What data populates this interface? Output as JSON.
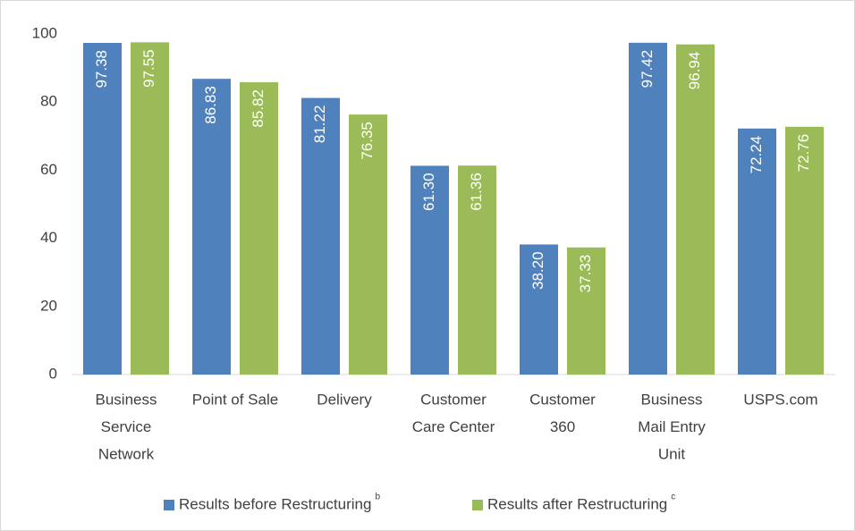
{
  "chart_data": {
    "type": "bar",
    "categories": [
      [
        "Business",
        "Service",
        "Network"
      ],
      [
        "Point of Sale"
      ],
      [
        "Delivery"
      ],
      [
        "Customer",
        "Care Center"
      ],
      [
        "Customer",
        "360"
      ],
      [
        "Business",
        "Mail Entry",
        "Unit"
      ],
      [
        "USPS.com"
      ]
    ],
    "series": [
      {
        "name": "Results before Restructuring",
        "note": "b",
        "color": "#4f81bd",
        "values": [
          97.38,
          86.83,
          81.22,
          61.3,
          38.2,
          97.42,
          72.24
        ],
        "value_labels": [
          "97.38",
          "86.83",
          "81.22",
          "61.30",
          "38.20",
          "97.42",
          "72.24"
        ]
      },
      {
        "name": "Results after Restructuring",
        "note": "c",
        "color": "#9bbb59",
        "values": [
          97.55,
          85.82,
          76.35,
          61.36,
          37.33,
          96.94,
          72.76
        ],
        "value_labels": [
          "97.55",
          "85.82",
          "76.35",
          "61.36",
          "37.33",
          "96.94",
          "72.76"
        ]
      }
    ],
    "ylim": [
      0,
      100
    ],
    "yticks": [
      0,
      20,
      40,
      60,
      80,
      100
    ],
    "grid": false,
    "legend": "bottom"
  }
}
